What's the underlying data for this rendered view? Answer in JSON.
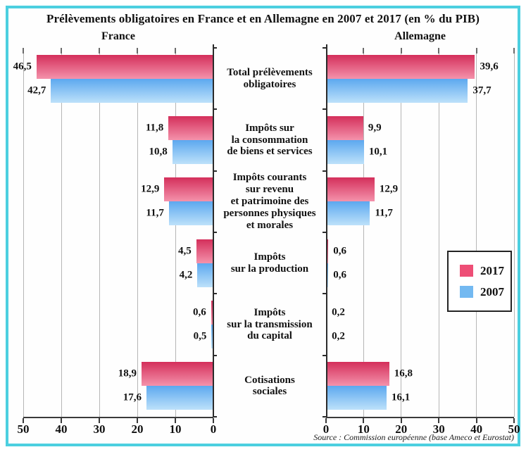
{
  "title": "Prélèvements obligatoires en France et en Allemagne en 2007 et 2017 (en % du PIB)",
  "left_header": "France",
  "right_header": "Allemagne",
  "source": "Source : Commission européenne (base Ameco et Eurostat)",
  "legend": {
    "items": [
      {
        "label": "2017",
        "color": "#ee4e76"
      },
      {
        "label": "2007",
        "color": "#73b9f1"
      }
    ]
  },
  "colors": {
    "frame": "#4ccfe0",
    "gridline": "#b6b6b6",
    "axis": "#2b2b2b",
    "pink_gradient_top": "#d42f5b",
    "pink_gradient_bottom": "#f492ab",
    "blue_gradient_top": "#5ca8ef",
    "blue_gradient_bottom": "#bde1fa"
  },
  "chart_data": {
    "type": "bar",
    "orientation": "horizontal-bilateral",
    "unit": "% du PIB",
    "sides": [
      "France",
      "Allemagne"
    ],
    "axis": {
      "ticks": [
        0,
        10,
        20,
        30,
        40,
        50
      ],
      "max": 50,
      "grid": true
    },
    "decimal_separator": ",",
    "legend_position": "right-middle",
    "categories": [
      "Total prélèvements\nobligatoires",
      "Impôts sur\nla consommation\nde biens et services",
      "Impôts courants\nsur revenu\net patrimoine des\npersonnes physiques\net morales",
      "Impôts\nsur la production",
      "Impôts\nsur la transmission\ndu capital",
      "Cotisations\nsociales"
    ],
    "series": [
      {
        "name": "2017",
        "color": "#ee4e76",
        "gradient": [
          "#d42f5b",
          "#f492ab"
        ],
        "france": [
          46.5,
          11.8,
          12.9,
          4.5,
          0.6,
          18.9
        ],
        "allemagne": [
          39.6,
          9.9,
          12.9,
          0.6,
          0.2,
          16.8
        ]
      },
      {
        "name": "2007",
        "color": "#73b9f1",
        "gradient": [
          "#5ca8ef",
          "#bde1fa"
        ],
        "france": [
          42.7,
          10.8,
          11.7,
          4.2,
          0.5,
          17.6
        ],
        "allemagne": [
          37.7,
          10.1,
          11.7,
          0.6,
          0.2,
          16.1
        ]
      }
    ]
  }
}
